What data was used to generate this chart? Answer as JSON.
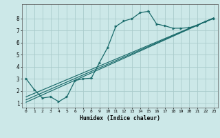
{
  "bg_color": "#cce8e8",
  "grid_color": "#aacccc",
  "line_color": "#1a6b6b",
  "xlabel": "Humidex (Indice chaleur)",
  "xlim": [
    -0.5,
    23.5
  ],
  "ylim": [
    0.6,
    9.2
  ],
  "xticks": [
    0,
    1,
    2,
    3,
    4,
    5,
    6,
    7,
    8,
    9,
    10,
    11,
    12,
    13,
    14,
    15,
    16,
    17,
    18,
    19,
    20,
    21,
    22,
    23
  ],
  "yticks": [
    1,
    2,
    3,
    4,
    5,
    6,
    7,
    8
  ],
  "data_x": [
    0,
    1,
    2,
    3,
    4,
    5,
    6,
    7,
    8,
    9,
    10,
    11,
    12,
    13,
    14,
    15,
    16,
    17,
    18,
    19,
    20,
    21,
    22,
    23
  ],
  "data_y": [
    3.0,
    2.1,
    1.4,
    1.5,
    1.1,
    1.5,
    2.85,
    3.0,
    3.05,
    4.35,
    5.6,
    7.35,
    7.8,
    8.0,
    8.5,
    8.6,
    7.55,
    7.4,
    7.2,
    7.2,
    7.25,
    7.45,
    7.75,
    8.0
  ],
  "line1_x": [
    0,
    23
  ],
  "line1_y": [
    1.05,
    8.05
  ],
  "line2_x": [
    0,
    23
  ],
  "line2_y": [
    1.25,
    8.05
  ],
  "line3_x": [
    0,
    23
  ],
  "line3_y": [
    1.5,
    8.05
  ]
}
